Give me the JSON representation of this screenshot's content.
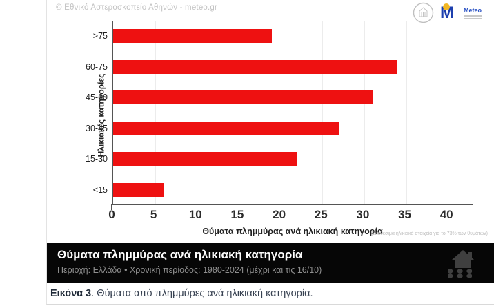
{
  "header": {
    "copyright": "© Εθνικό Αστεροσκοπείο Αθηνών - meteo.gr",
    "meteo_logo": {
      "m": "M",
      "name": "Meteo"
    }
  },
  "chart_data": {
    "type": "bar",
    "orientation": "horizontal",
    "categories": [
      ">75",
      "60-75",
      "45-60",
      "30-45",
      "15-30",
      "<15"
    ],
    "values": [
      19,
      34,
      31,
      27,
      22,
      6
    ],
    "title": "",
    "xlabel": "Θύματα πλημμύρας ανά ηλικιακή κατηγορία",
    "ylabel": "Ηλικιακές κατηγορίες",
    "xlim": [
      0,
      43.2
    ],
    "xticks": [
      0,
      5,
      10,
      15,
      20,
      25,
      30,
      35,
      40
    ],
    "grid": true,
    "legend": "none",
    "bar_color": "#ee1111",
    "note": "(Διαθέσιμα ηλικιακά στοιχεία για το 73% των θυμάτων)"
  },
  "banner": {
    "title": "Θύματα πλημμύρας ανά ηλικιακή κατηγορία",
    "subtitle": "Περιοχή: Ελλάδα • Χρονική περίοδος: 1980-2024 (μέχρι και τις 16/10)"
  },
  "caption": {
    "bold": "Εικόνα 3",
    "rest": ". Θύματα από πλημμύρες ανά ηλικιακή κατηγορία."
  }
}
